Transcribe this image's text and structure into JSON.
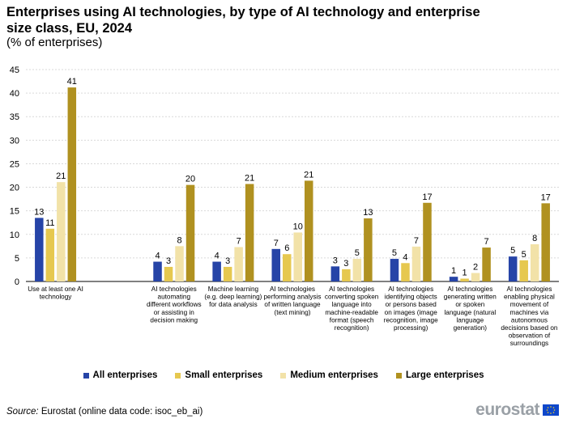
{
  "title": "Enterprises using AI technologies, by type of AI technology and enterprise size class, EU, 2024",
  "subtitle": "(% of enterprises)",
  "chart_data": {
    "type": "bar",
    "title": "Enterprises using AI technologies, by type of AI technology and enterprise size class, EU, 2024",
    "ylabel": "% of enterprises",
    "ylim": [
      0,
      45
    ],
    "yticks": [
      0,
      5,
      10,
      15,
      20,
      25,
      30,
      35,
      40,
      45
    ],
    "grid": true,
    "legend": "bottom",
    "categories": [
      [
        "Use at least one AI",
        "technology"
      ],
      [],
      [
        "AI technologies",
        "automating",
        "different workflows",
        "or assisting in",
        "decision making"
      ],
      [
        "Machine learning",
        "(e.g. deep learning)",
        "for data analysis"
      ],
      [
        "AI technologies",
        "performing analysis",
        "of written language",
        "(text mining)"
      ],
      [
        "AI technologies",
        "converting spoken",
        "language into",
        "machine-readable",
        "format (speech",
        "recognition)"
      ],
      [
        "AI technologies",
        "identifying objects",
        "or persons based",
        "on images (image",
        "recognition, image",
        "processing)"
      ],
      [
        "AI technologies",
        "generating written",
        "or spoken",
        "language (natural",
        "language",
        "generation)"
      ],
      [
        "AI technologies",
        "enabling physical",
        "movement of",
        "machines via",
        "autonomous",
        "decisions based on",
        "observation of",
        "surroundings"
      ]
    ],
    "series": [
      {
        "name": "All enterprises",
        "color": "#2644a7",
        "values": [
          13.5,
          null,
          4.2,
          4.2,
          6.9,
          3.2,
          4.8,
          1.0,
          5.3
        ],
        "labels": [
          "13",
          "",
          "4",
          "4",
          "7",
          "3",
          "5",
          "1",
          "5"
        ]
      },
      {
        "name": "Small enterprises",
        "color": "#e6c84f",
        "values": [
          11.2,
          null,
          3.1,
          3.1,
          5.8,
          2.6,
          3.9,
          0.6,
          4.5
        ],
        "labels": [
          "11",
          "",
          "3",
          "3",
          "6",
          "3",
          "4",
          "1",
          "5"
        ]
      },
      {
        "name": "Medium enterprises",
        "color": "#f2e2a8",
        "values": [
          21.1,
          null,
          7.5,
          7.3,
          10.4,
          4.8,
          7.4,
          1.8,
          7.9
        ],
        "labels": [
          "21",
          "",
          "8",
          "7",
          "10",
          "5",
          "7",
          "2",
          "8"
        ]
      },
      {
        "name": "Large enterprises",
        "color": "#b09120",
        "values": [
          41.2,
          null,
          20.5,
          20.7,
          21.4,
          13.4,
          16.7,
          7.2,
          16.6
        ],
        "labels": [
          "41",
          "",
          "20",
          "21",
          "21",
          "13",
          "17",
          "7",
          "17"
        ]
      }
    ]
  },
  "source": {
    "label": "Source:",
    "text": " Eurostat (online data code: isoc_eb_ai)"
  },
  "logo": {
    "text": "eurostat"
  }
}
